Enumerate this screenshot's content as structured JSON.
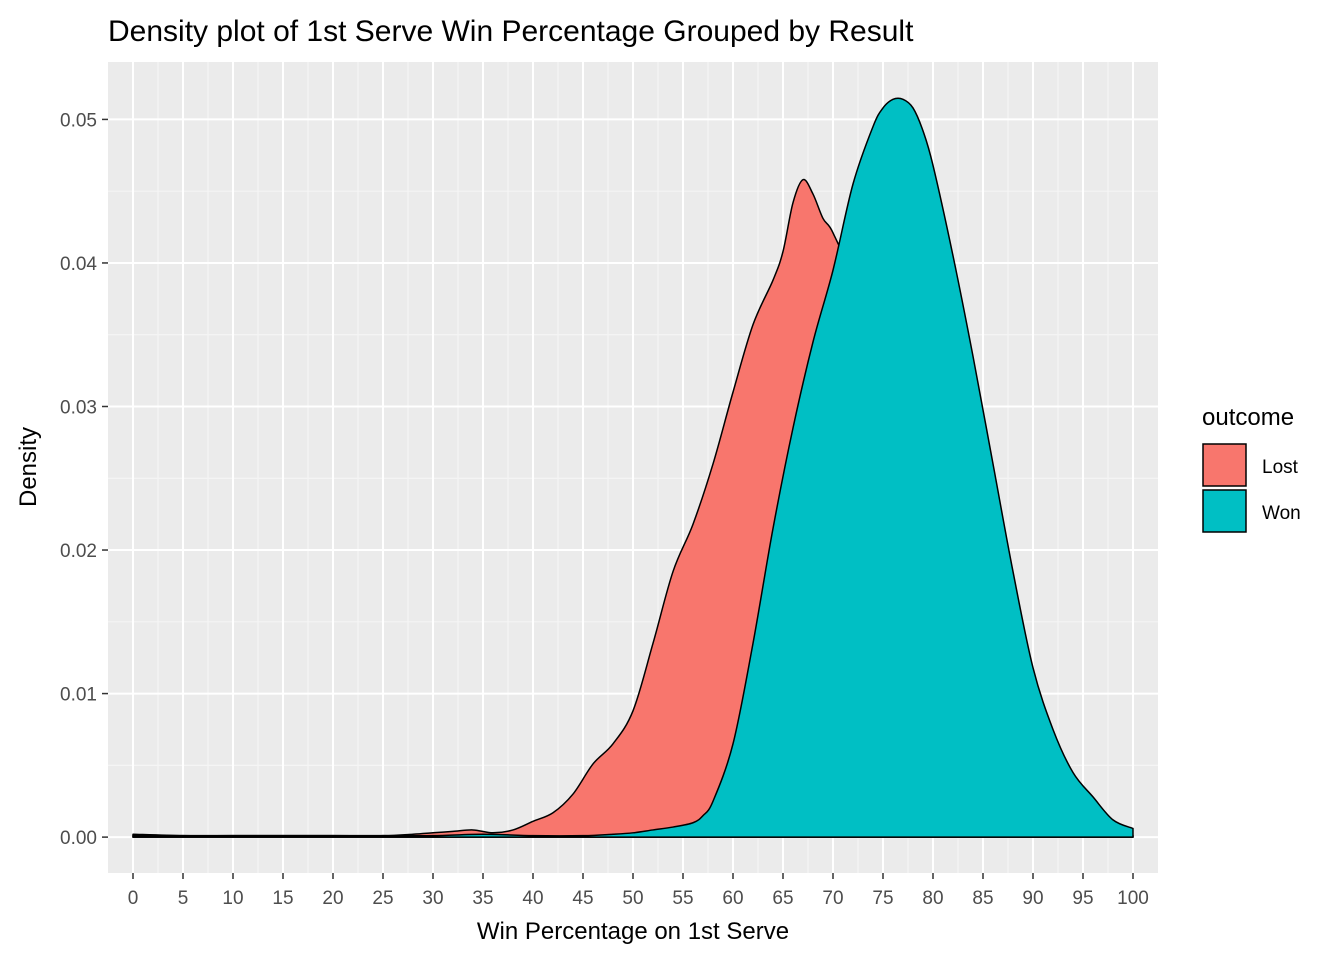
{
  "chart_data": {
    "type": "area",
    "title": "Density plot of 1st Serve Win Percentage Grouped by Result",
    "xlabel": "Win Percentage on 1st Serve",
    "ylabel": "Density",
    "xlim": [
      -2.5,
      102.5
    ],
    "ylim": [
      -0.0025,
      0.054
    ],
    "x_ticks": [
      0,
      5,
      10,
      15,
      20,
      25,
      30,
      35,
      40,
      45,
      50,
      55,
      60,
      65,
      70,
      75,
      80,
      85,
      90,
      95,
      100
    ],
    "x_tick_labels": [
      "0",
      "5",
      "10",
      "15",
      "20",
      "25",
      "30",
      "35",
      "40",
      "45",
      "50",
      "55",
      "60",
      "65",
      "70",
      "75",
      "80",
      "85",
      "90",
      "95",
      "100"
    ],
    "y_ticks": [
      0,
      0.01,
      0.02,
      0.03,
      0.04,
      0.05
    ],
    "y_tick_labels": [
      "0.00",
      "0.01",
      "0.02",
      "0.03",
      "0.04",
      "0.05"
    ],
    "grid": true,
    "legend": {
      "title": "outcome",
      "position": "right"
    },
    "series": [
      {
        "name": "Lost",
        "color": "#F8766D",
        "x": [
          0,
          5,
          10,
          15,
          20,
          25,
          28,
          30,
          32,
          34,
          36,
          38,
          40,
          42,
          44,
          46,
          48,
          50,
          52,
          54,
          56,
          58,
          60,
          62,
          64,
          65,
          66,
          67,
          68,
          69,
          70,
          72,
          74,
          76,
          78,
          80,
          82,
          84,
          86,
          88,
          90,
          92,
          94,
          96,
          98,
          100
        ],
        "y": [
          0.0002,
          0.0001,
          0.0001,
          0.0001,
          0.0001,
          0.0001,
          0.0002,
          0.0003,
          0.0004,
          0.0005,
          0.0003,
          0.0005,
          0.0011,
          0.0017,
          0.003,
          0.0051,
          0.0065,
          0.0088,
          0.0135,
          0.0185,
          0.0218,
          0.026,
          0.031,
          0.0357,
          0.0388,
          0.0408,
          0.0442,
          0.0458,
          0.0448,
          0.0431,
          0.0421,
          0.0385,
          0.0315,
          0.0225,
          0.0145,
          0.0085,
          0.0045,
          0.0022,
          0.001,
          0.0005,
          0.0003,
          0.0002,
          0.0001,
          0.0001,
          0.0001,
          0.0001
        ]
      },
      {
        "name": "Won",
        "color": "#00BFC4",
        "x": [
          0,
          5,
          10,
          15,
          20,
          25,
          30,
          35,
          40,
          45,
          48,
          50,
          52,
          54,
          56,
          57,
          58,
          60,
          62,
          64,
          66,
          68,
          70,
          72,
          74,
          75,
          76,
          77,
          78,
          79,
          80,
          82,
          84,
          86,
          88,
          90,
          92,
          94,
          96,
          98,
          100
        ],
        "y": [
          0.0001,
          0.0001,
          0.0001,
          0.0001,
          0.0001,
          0.0001,
          0.0001,
          0.0002,
          0.0001,
          0.0001,
          0.0002,
          0.0003,
          0.0005,
          0.0007,
          0.001,
          0.0015,
          0.0025,
          0.0065,
          0.0135,
          0.0215,
          0.0285,
          0.0345,
          0.0395,
          0.0455,
          0.0495,
          0.0508,
          0.0514,
          0.0514,
          0.0508,
          0.0492,
          0.0468,
          0.0405,
          0.0335,
          0.026,
          0.0185,
          0.0118,
          0.0075,
          0.0045,
          0.0028,
          0.0012,
          0.0006
        ]
      }
    ]
  }
}
